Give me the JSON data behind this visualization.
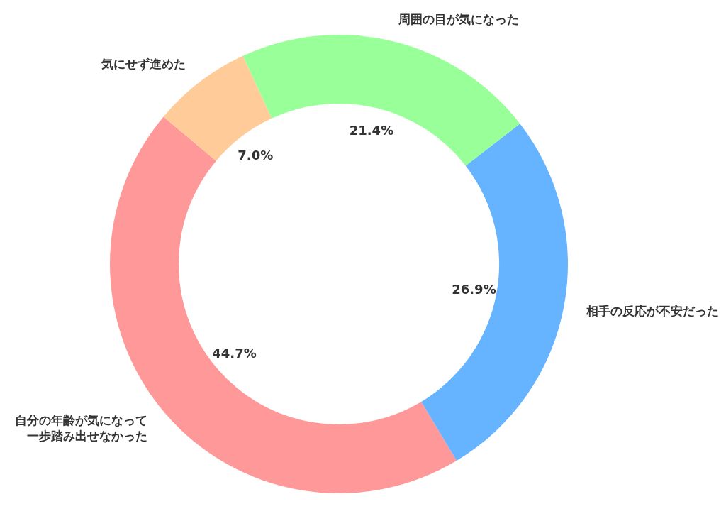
{
  "chart_data": {
    "type": "donut",
    "categories": [
      "自分の年齢が気になって一歩踏み出せなかった",
      "相手の反応が不安だった",
      "周囲の目が気になった",
      "気にせず進めた"
    ],
    "values": [
      44.7,
      26.9,
      21.4,
      7.0
    ],
    "value_labels": [
      "44.7%",
      "26.9%",
      "21.4%",
      "7.0%"
    ],
    "colors": [
      "#ff9999",
      "#66b3ff",
      "#99ff99",
      "#ffcc99"
    ]
  }
}
